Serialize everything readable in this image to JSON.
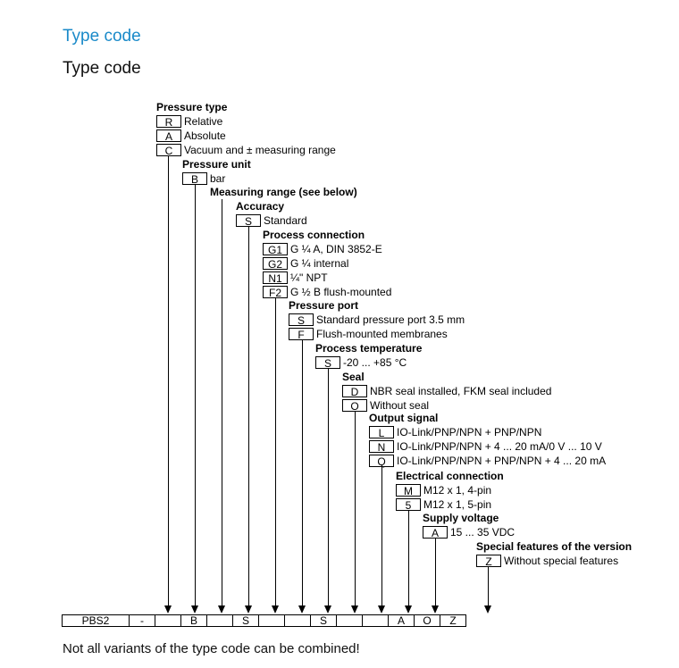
{
  "heading_primary": "Type code",
  "heading_secondary": "Type code",
  "groups": [
    {
      "title": "Pressure type",
      "options": [
        {
          "code": "R",
          "desc": "Relative"
        },
        {
          "code": "A",
          "desc": "Absolute"
        },
        {
          "code": "C",
          "desc": "Vacuum and ± measuring range"
        }
      ]
    },
    {
      "title": "Pressure unit",
      "options": [
        {
          "code": "B",
          "desc": "bar"
        }
      ]
    },
    {
      "title": "Measuring range (see below)",
      "options": []
    },
    {
      "title": "Accuracy",
      "options": [
        {
          "code": "S",
          "desc": "Standard"
        }
      ]
    },
    {
      "title": "Process connection",
      "options": [
        {
          "code": "G1",
          "desc": "G ¼ A, DIN 3852-E"
        },
        {
          "code": "G2",
          "desc": "G ¼ internal"
        },
        {
          "code": "N1",
          "desc": "¼\" NPT"
        },
        {
          "code": "F2",
          "desc": "G ½ B flush-mounted"
        }
      ]
    },
    {
      "title": "Pressure port",
      "options": [
        {
          "code": "S",
          "desc": "Standard pressure port 3.5 mm"
        },
        {
          "code": "F",
          "desc": "Flush-mounted membranes"
        }
      ]
    },
    {
      "title": "Process temperature",
      "options": [
        {
          "code": "S",
          "desc": "-20 ... +85 °C"
        }
      ]
    },
    {
      "title": "Seal",
      "options": [
        {
          "code": "D",
          "desc": "NBR seal installed, FKM seal included"
        },
        {
          "code": "O",
          "desc": "Without seal"
        }
      ]
    },
    {
      "title": "Output signal",
      "options": [
        {
          "code": "L",
          "desc": "IO-Link/PNP/NPN + PNP/NPN"
        },
        {
          "code": "N",
          "desc": "IO-Link/PNP/NPN + 4 ... 20 mA/0 V ... 10 V"
        },
        {
          "code": "Q",
          "desc": "IO-Link/PNP/NPN + PNP/NPN + 4 ... 20 mA"
        }
      ]
    },
    {
      "title": "Electrical connection",
      "options": [
        {
          "code": "M",
          "desc": "M12 x 1, 4-pin"
        },
        {
          "code": "5",
          "desc": "M12 x 1, 5-pin"
        }
      ]
    },
    {
      "title": "Supply voltage",
      "options": [
        {
          "code": "A",
          "desc": "15 ... 35 VDC"
        }
      ]
    },
    {
      "title": "Special features of the version",
      "options": [
        {
          "code": "Z",
          "desc": "Without special features"
        }
      ]
    }
  ],
  "type_code_row": [
    "PBS2",
    "-",
    "",
    "B",
    "",
    "S",
    "",
    "",
    "S",
    "",
    "",
    "A",
    "O",
    "Z"
  ],
  "note": "Not all variants of the type code can be combined!"
}
